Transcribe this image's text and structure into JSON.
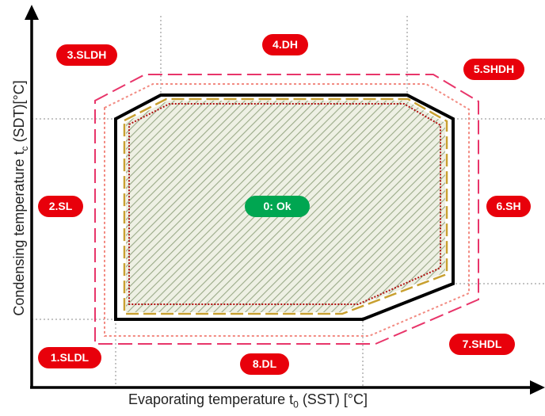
{
  "axes": {
    "x_label_main": "Evaporating temperature t",
    "x_label_sub": "0",
    "x_label_tail": " (SST) [°C]",
    "y_label_main": "Condensing temperature t",
    "y_label_sub": "c",
    "y_label_tail": " (SDT)[°C]"
  },
  "zones": {
    "ok": "0: Ok",
    "sldl": "1.SLDL",
    "sl": "2.SL",
    "sldh": "3.SLDH",
    "dh": "4.DH",
    "shdh": "5.SHDH",
    "sh": "6.SH",
    "shdl": "7.SHDL",
    "dl": "8.DL"
  },
  "colors": {
    "alarm_badge": "#e8000b",
    "ok_badge": "#00a651",
    "envelope_outline": "#000000",
    "outer_dash": "#e8356a",
    "inner_dot": "#f28b82",
    "operating_area_outline": "#c8a030",
    "inner_limit_dot": "#b01010",
    "hatch": "#9aaa88",
    "hatch_bg": "#eef0e4",
    "grid_line": "#888888"
  }
}
